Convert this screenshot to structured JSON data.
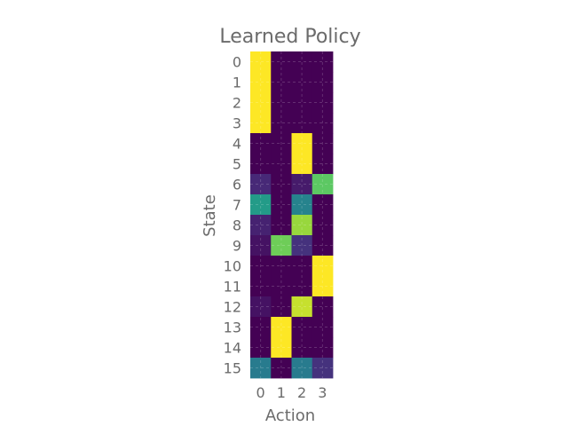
{
  "chart_data": {
    "type": "heatmap",
    "title": "Learned Policy",
    "xlabel": "Action",
    "ylabel": "State",
    "x_categories": [
      "0",
      "1",
      "2",
      "3"
    ],
    "y_categories": [
      "0",
      "1",
      "2",
      "3",
      "4",
      "5",
      "6",
      "7",
      "8",
      "9",
      "10",
      "11",
      "12",
      "13",
      "14",
      "15"
    ],
    "colormap": "viridis",
    "value_range": [
      0,
      1
    ],
    "grid": true,
    "values": [
      [
        1.0,
        0.0,
        0.0,
        0.0
      ],
      [
        1.0,
        0.0,
        0.0,
        0.0
      ],
      [
        1.0,
        0.0,
        0.0,
        0.0
      ],
      [
        1.0,
        0.0,
        0.0,
        0.0
      ],
      [
        0.0,
        0.0,
        1.0,
        0.0
      ],
      [
        0.0,
        0.0,
        1.0,
        0.0
      ],
      [
        0.12,
        0.0,
        0.08,
        0.75
      ],
      [
        0.55,
        0.0,
        0.45,
        0.0
      ],
      [
        0.1,
        0.0,
        0.85,
        0.0
      ],
      [
        0.05,
        0.78,
        0.15,
        0.0
      ],
      [
        0.0,
        0.0,
        0.0,
        1.0
      ],
      [
        0.0,
        0.0,
        0.0,
        1.0
      ],
      [
        0.05,
        0.0,
        0.92,
        0.0
      ],
      [
        0.0,
        1.0,
        0.0,
        0.0
      ],
      [
        0.0,
        1.0,
        0.0,
        0.0
      ],
      [
        0.42,
        0.0,
        0.42,
        0.15
      ]
    ]
  }
}
